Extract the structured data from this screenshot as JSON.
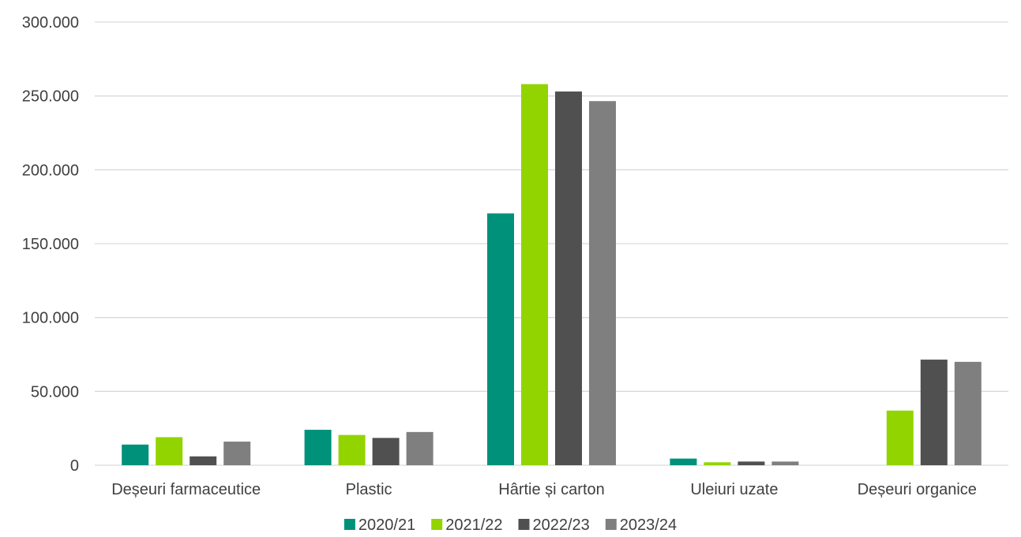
{
  "chart_data": {
    "type": "bar",
    "categories": [
      "Deșeuri farmaceutice",
      "Plastic",
      "Hârtie și carton",
      "Uleiuri uzate",
      "Deșeuri organice"
    ],
    "series": [
      {
        "name": "2020/21",
        "color": "#00917a",
        "values": [
          14000,
          24000,
          170500,
          4500,
          0
        ]
      },
      {
        "name": "2021/22",
        "color": "#92d400",
        "values": [
          19000,
          20500,
          258000,
          2000,
          37000
        ]
      },
      {
        "name": "2022/23",
        "color": "#505050",
        "values": [
          6000,
          18500,
          253000,
          2500,
          71500
        ]
      },
      {
        "name": "2023/24",
        "color": "#7f7f7f",
        "values": [
          16000,
          22500,
          246500,
          2500,
          70000
        ]
      }
    ],
    "ylim": [
      0,
      300000
    ],
    "yticks": [
      {
        "value": 0,
        "label": "0"
      },
      {
        "value": 50000,
        "label": "50.000"
      },
      {
        "value": 100000,
        "label": "100.000"
      },
      {
        "value": 150000,
        "label": "150.000"
      },
      {
        "value": 200000,
        "label": "200.000"
      },
      {
        "value": 250000,
        "label": "250.000"
      },
      {
        "value": 300000,
        "label": "300.000"
      }
    ],
    "grid": true,
    "legend_position": "bottom"
  }
}
